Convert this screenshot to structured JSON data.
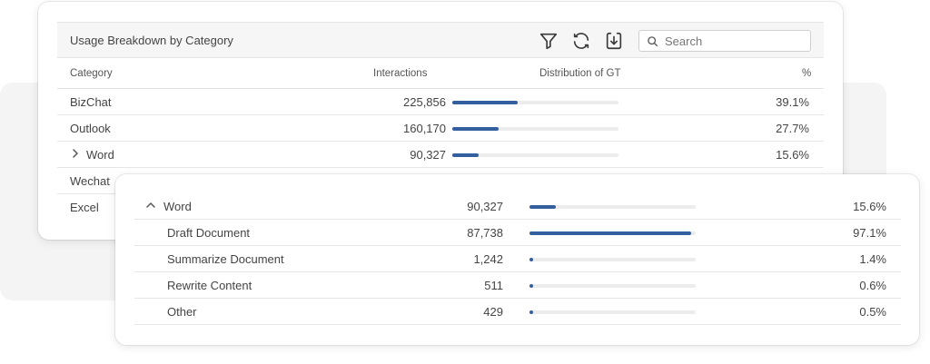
{
  "main": {
    "title": "Usage Breakdown by Category",
    "search_placeholder": "Search",
    "columns": {
      "category": "Category",
      "interactions": "Interactions",
      "distribution": "Distribution of GT",
      "percent": "%"
    },
    "rows": [
      {
        "category": "BizChat",
        "interactions": "225,856",
        "percent": "39.1%",
        "fill": 0.391
      },
      {
        "category": "Outlook",
        "interactions": "160,170",
        "percent": "27.7%",
        "fill": 0.277
      },
      {
        "category": "Word",
        "interactions": "90,327",
        "percent": "15.6%",
        "fill": 0.156
      },
      {
        "category": "Wechat"
      },
      {
        "category": "Excel"
      }
    ],
    "icons": [
      "filter-icon",
      "refresh-icon",
      "download-icon",
      "search-icon",
      "chevron-right-icon"
    ]
  },
  "detail": {
    "parent": {
      "category": "Word",
      "interactions": "90,327",
      "percent": "15.6%",
      "fill": 0.156
    },
    "rows": [
      {
        "category": "Draft Document",
        "interactions": "87,738",
        "percent": "97.1%",
        "fill": 0.971
      },
      {
        "category": "Summarize Document",
        "interactions": "1,242",
        "percent": "1.4%",
        "fill": 0.014
      },
      {
        "category": "Rewrite Content",
        "interactions": "511",
        "percent": "0.6%",
        "fill": 0.006
      },
      {
        "category": "Other",
        "interactions": "429",
        "percent": "0.5%",
        "fill": 0.005
      }
    ],
    "icons": [
      "chevron-up-icon"
    ]
  },
  "colors": {
    "bar": "#335f9f",
    "track": "#ececec",
    "backdrop": "#f4f4f4"
  }
}
